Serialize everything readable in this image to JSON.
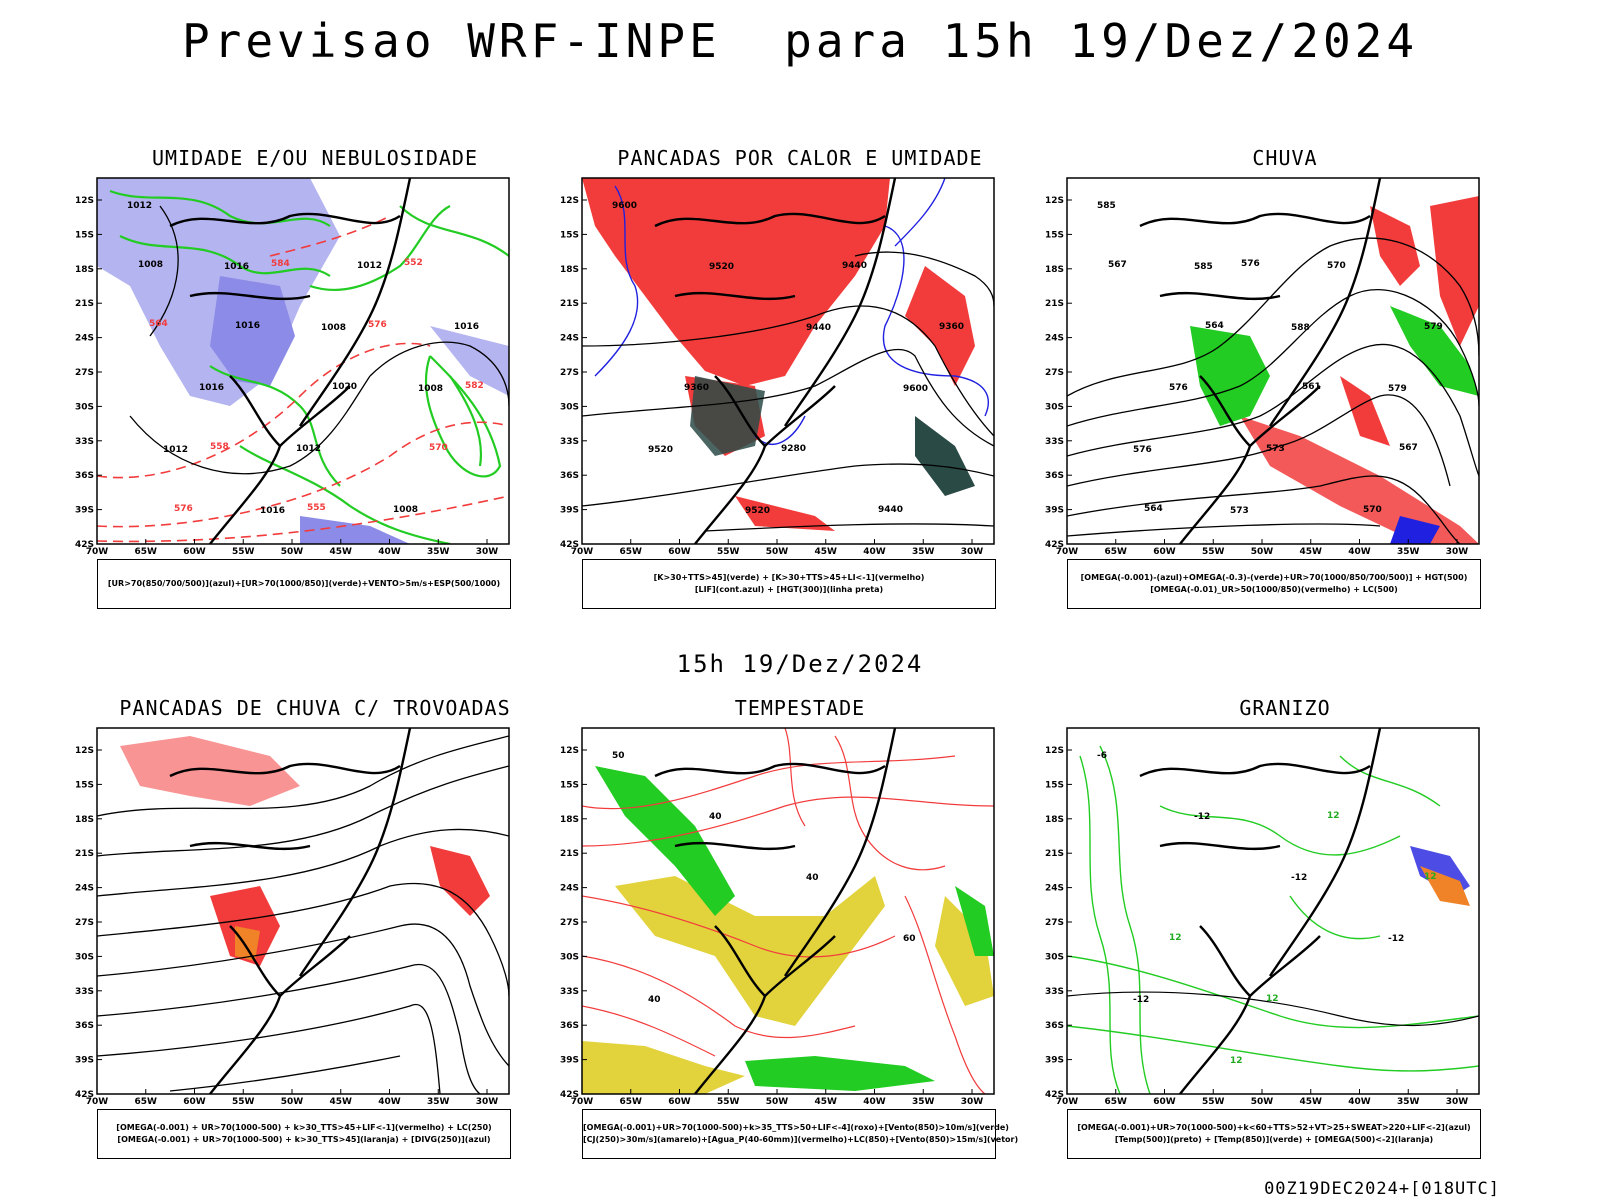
{
  "header": {
    "title": "Previsao WRF-INPE  para 15h 19/Dez/2024"
  },
  "middle_label": "15h 19/Dez/2024",
  "footer": "00Z19DEC2024+[018UTC]",
  "axes": {
    "lat_labels": [
      "12S",
      "15S",
      "18S",
      "21S",
      "24S",
      "27S",
      "30S",
      "33S",
      "36S",
      "39S",
      "42S"
    ],
    "lon_labels": [
      "70W",
      "65W",
      "60W",
      "55W",
      "50W",
      "45W",
      "40W",
      "35W",
      "30W"
    ]
  },
  "colors": {
    "blue_fill": "#b4b4f0",
    "blue_dark": "#5a5ae6",
    "green": "#22cc22",
    "red": "#f23c3c",
    "darkteal": "#2a4a46",
    "yellow": "#e2d23c",
    "orange": "#f08228",
    "blue_line": "#2020e0"
  },
  "panels": [
    {
      "id": "umidade",
      "title": "UMIDADE E/OU NEBULOSIDADE",
      "legend": [
        "[UR>70(850/700/500)](azul)+[UR>70(1000/850)](verde)+VENTO>5m/s+ESP(500/1000)"
      ],
      "contour_labels": [
        "1012",
        "1016",
        "1008",
        "1008",
        "1012",
        "1016",
        "1012",
        "1016",
        "1016",
        "1012",
        "1008",
        "1008",
        "1016",
        "1020",
        "570",
        "576",
        "584",
        "576",
        "582",
        "558",
        "555",
        "552",
        "564"
      ]
    },
    {
      "id": "pancadas-calor",
      "title": "PANCADAS POR CALOR E UMIDADE",
      "legend": [
        "[K>30+TTS>45](verde) + [K>30+TTS>45+LI<-1](vermelho)",
        "[LIF](cont.azul) + [HGT(300)](linha preta)"
      ],
      "contour_labels": [
        "9600",
        "9520",
        "9440",
        "9600",
        "9520",
        "9520",
        "9440",
        "9360",
        "9360",
        "9280",
        "9440"
      ]
    },
    {
      "id": "chuva",
      "title": "CHUVA",
      "legend": [
        "[OMEGA(-0.001)-(azul)+OMEGA(-0.3)-(verde)+UR>70(1000/850/700/500)] + HGT(500)",
        "[OMEGA(-0.01)_UR>50(1000/850)(vermelho) + LC(500)"
      ],
      "contour_labels": [
        "585",
        "585",
        "588",
        "579",
        "576",
        "573",
        "570",
        "579",
        "576",
        "573",
        "570",
        "567",
        "564",
        "561",
        "567",
        "564",
        "576"
      ]
    },
    {
      "id": "pancadas-trovoadas",
      "title": "PANCADAS DE CHUVA C/ TROVOADAS",
      "legend": [
        "[OMEGA(-0.001) + UR>70(1000-500) + k>30_TTS>45+LIF<-1](vermelho) + LC(250)",
        "[OMEGA(-0.001) + UR>70(1000-500) + k>30_TTS>45](laranja) + [DIVG(250)](azul)"
      ],
      "contour_labels": []
    },
    {
      "id": "tempestade",
      "title": "TEMPESTADE",
      "legend": [
        "[OMEGA(-0.001)+UR>70(1000-500)+k>35_TTS>50+LIF<-4](roxo)+[Vento(850)>10m/s](verde)",
        "[CJ(250)>30m/s](amarelo)+[Agua_P(40-60mm)](vermelho)+LC(850)+[Vento(850)>15m/s](vetor)"
      ],
      "contour_labels": [
        "50",
        "40",
        "40",
        "60",
        "40"
      ]
    },
    {
      "id": "granizo",
      "title": "GRANIZO",
      "legend": [
        "[OMEGA(-0.001)+UR>70(1000-500)+k<60+TTS>52+VT>25+SWEAT>220+LIF<-2](azul)",
        "[Temp(500)](preto) + [Temp(850)](verde) + [OMEGA(500)<-2](laranja)"
      ],
      "contour_labels": [
        "-6",
        "-12",
        "-12",
        "-12",
        "-12",
        "12",
        "12",
        "12",
        "12",
        "12"
      ]
    }
  ]
}
